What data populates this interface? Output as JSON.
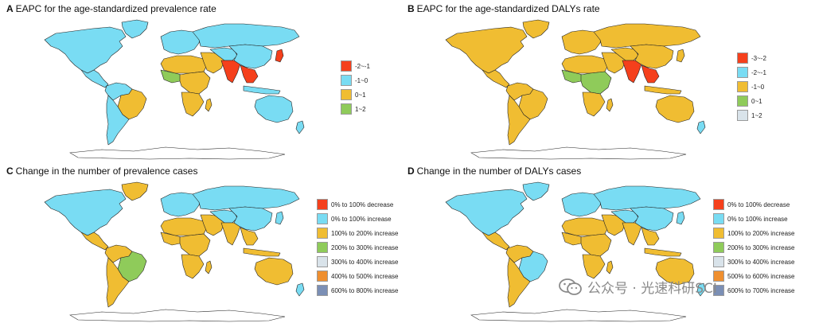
{
  "colors": {
    "ocean": "#ffffff",
    "border": "#222222",
    "red": "#f5401c",
    "blue": "#79dcf3",
    "yellow": "#f0bd32",
    "green": "#8fcb5a",
    "light": "#d9e3ea",
    "orange": "#ef8f2f",
    "slate": "#7b8fb5",
    "antarctica": "#ffffff"
  },
  "panels": [
    {
      "letter": "A",
      "title": "EAPC for the age-standardized prevalence rate",
      "legend": [
        {
          "label": "-2~-1",
          "color": "#f5401c"
        },
        {
          "label": "-1~0",
          "color": "#79dcf3"
        },
        {
          "label": "0~1",
          "color": "#f0bd32"
        },
        {
          "label": "1~2",
          "color": "#8fcb5a"
        }
      ],
      "regions": {
        "north_america": "#79dcf3",
        "greenland": "#79dcf3",
        "central_america": "#79dcf3",
        "south_america_north": "#79dcf3",
        "brazil": "#f0bd32",
        "south_america_south": "#79dcf3",
        "europe": "#79dcf3",
        "russia": "#79dcf3",
        "north_africa": "#f0bd32",
        "west_africa": "#8fcb5a",
        "central_africa": "#f0bd32",
        "southern_africa": "#f0bd32",
        "middle_east": "#f0bd32",
        "central_asia": "#79dcf3",
        "south_asia": "#f5401c",
        "china": "#79dcf3",
        "southeast_asia": "#f5401c",
        "japan": "#f5401c",
        "indonesia": "#79dcf3",
        "australia": "#79dcf3",
        "new_zealand": "#79dcf3",
        "madagascar": "#f0bd32"
      }
    },
    {
      "letter": "B",
      "title": "EAPC for the age-standardized DALYs rate",
      "legend": [
        {
          "label": "-3~-2",
          "color": "#f5401c"
        },
        {
          "label": "-2~-1",
          "color": "#79dcf3"
        },
        {
          "label": "-1~0",
          "color": "#f0bd32"
        },
        {
          "label": "0~1",
          "color": "#8fcb5a"
        },
        {
          "label": "1~2",
          "color": "#d9e3ea"
        }
      ],
      "regions": {
        "north_america": "#f0bd32",
        "greenland": "#f0bd32",
        "central_america": "#f0bd32",
        "south_america_north": "#f0bd32",
        "brazil": "#f0bd32",
        "south_america_south": "#f0bd32",
        "europe": "#f0bd32",
        "russia": "#f0bd32",
        "north_africa": "#f0bd32",
        "west_africa": "#8fcb5a",
        "central_africa": "#8fcb5a",
        "southern_africa": "#f0bd32",
        "middle_east": "#f0bd32",
        "central_asia": "#f0bd32",
        "south_asia": "#f5401c",
        "china": "#f0bd32",
        "southeast_asia": "#f5401c",
        "japan": "#f0bd32",
        "indonesia": "#f0bd32",
        "australia": "#f0bd32",
        "new_zealand": "#79dcf3",
        "madagascar": "#f0bd32"
      }
    },
    {
      "letter": "C",
      "title": "Change in the number of prevalence cases",
      "legend": [
        {
          "label": "0% to 100% decrease",
          "color": "#f5401c"
        },
        {
          "label": "0% to 100% increase",
          "color": "#79dcf3"
        },
        {
          "label": "100% to 200% increase",
          "color": "#f0bd32"
        },
        {
          "label": "200% to 300% increase",
          "color": "#8fcb5a"
        },
        {
          "label": "300% to 400% increase",
          "color": "#d9e3ea"
        },
        {
          "label": "400% to 500% increase",
          "color": "#ef8f2f"
        },
        {
          "label": "600% to 800% increase",
          "color": "#7b8fb5"
        }
      ],
      "regions": {
        "north_america": "#79dcf3",
        "greenland": "#f0bd32",
        "central_america": "#f0bd32",
        "south_america_north": "#f0bd32",
        "brazil": "#8fcb5a",
        "south_america_south": "#f0bd32",
        "europe": "#79dcf3",
        "russia": "#79dcf3",
        "north_africa": "#f0bd32",
        "west_africa": "#f0bd32",
        "central_africa": "#f0bd32",
        "southern_africa": "#f0bd32",
        "middle_east": "#f0bd32",
        "central_asia": "#79dcf3",
        "south_asia": "#f0bd32",
        "china": "#79dcf3",
        "southeast_asia": "#f0bd32",
        "japan": "#79dcf3",
        "indonesia": "#f0bd32",
        "australia": "#f0bd32",
        "new_zealand": "#79dcf3",
        "madagascar": "#f0bd32"
      }
    },
    {
      "letter": "D",
      "title": "Change in the number of DALYs cases",
      "legend": [
        {
          "label": "0% to 100% decrease",
          "color": "#f5401c"
        },
        {
          "label": "0% to 100% increase",
          "color": "#79dcf3"
        },
        {
          "label": "100% to 200% increase",
          "color": "#f0bd32"
        },
        {
          "label": "200% to 300% increase",
          "color": "#8fcb5a"
        },
        {
          "label": "300% to 400% increase",
          "color": "#d9e3ea"
        },
        {
          "label": "500% to 600% increase",
          "color": "#ef8f2f"
        },
        {
          "label": "600% to 700% increase",
          "color": "#7b8fb5"
        }
      ],
      "regions": {
        "north_america": "#79dcf3",
        "greenland": "#79dcf3",
        "central_america": "#f0bd32",
        "south_america_north": "#f0bd32",
        "brazil": "#79dcf3",
        "south_america_south": "#f0bd32",
        "europe": "#79dcf3",
        "russia": "#79dcf3",
        "north_africa": "#f0bd32",
        "west_africa": "#f0bd32",
        "central_africa": "#f0bd32",
        "southern_africa": "#f0bd32",
        "middle_east": "#f0bd32",
        "central_asia": "#79dcf3",
        "south_asia": "#f0bd32",
        "china": "#79dcf3",
        "southeast_asia": "#f0bd32",
        "japan": "#79dcf3",
        "indonesia": "#f0bd32",
        "australia": "#f0bd32",
        "new_zealand": "#79dcf3",
        "madagascar": "#f0bd32"
      }
    }
  ],
  "watermark": {
    "icon": "wechat-icon",
    "text": "公众号 · 光速科研SCI"
  }
}
